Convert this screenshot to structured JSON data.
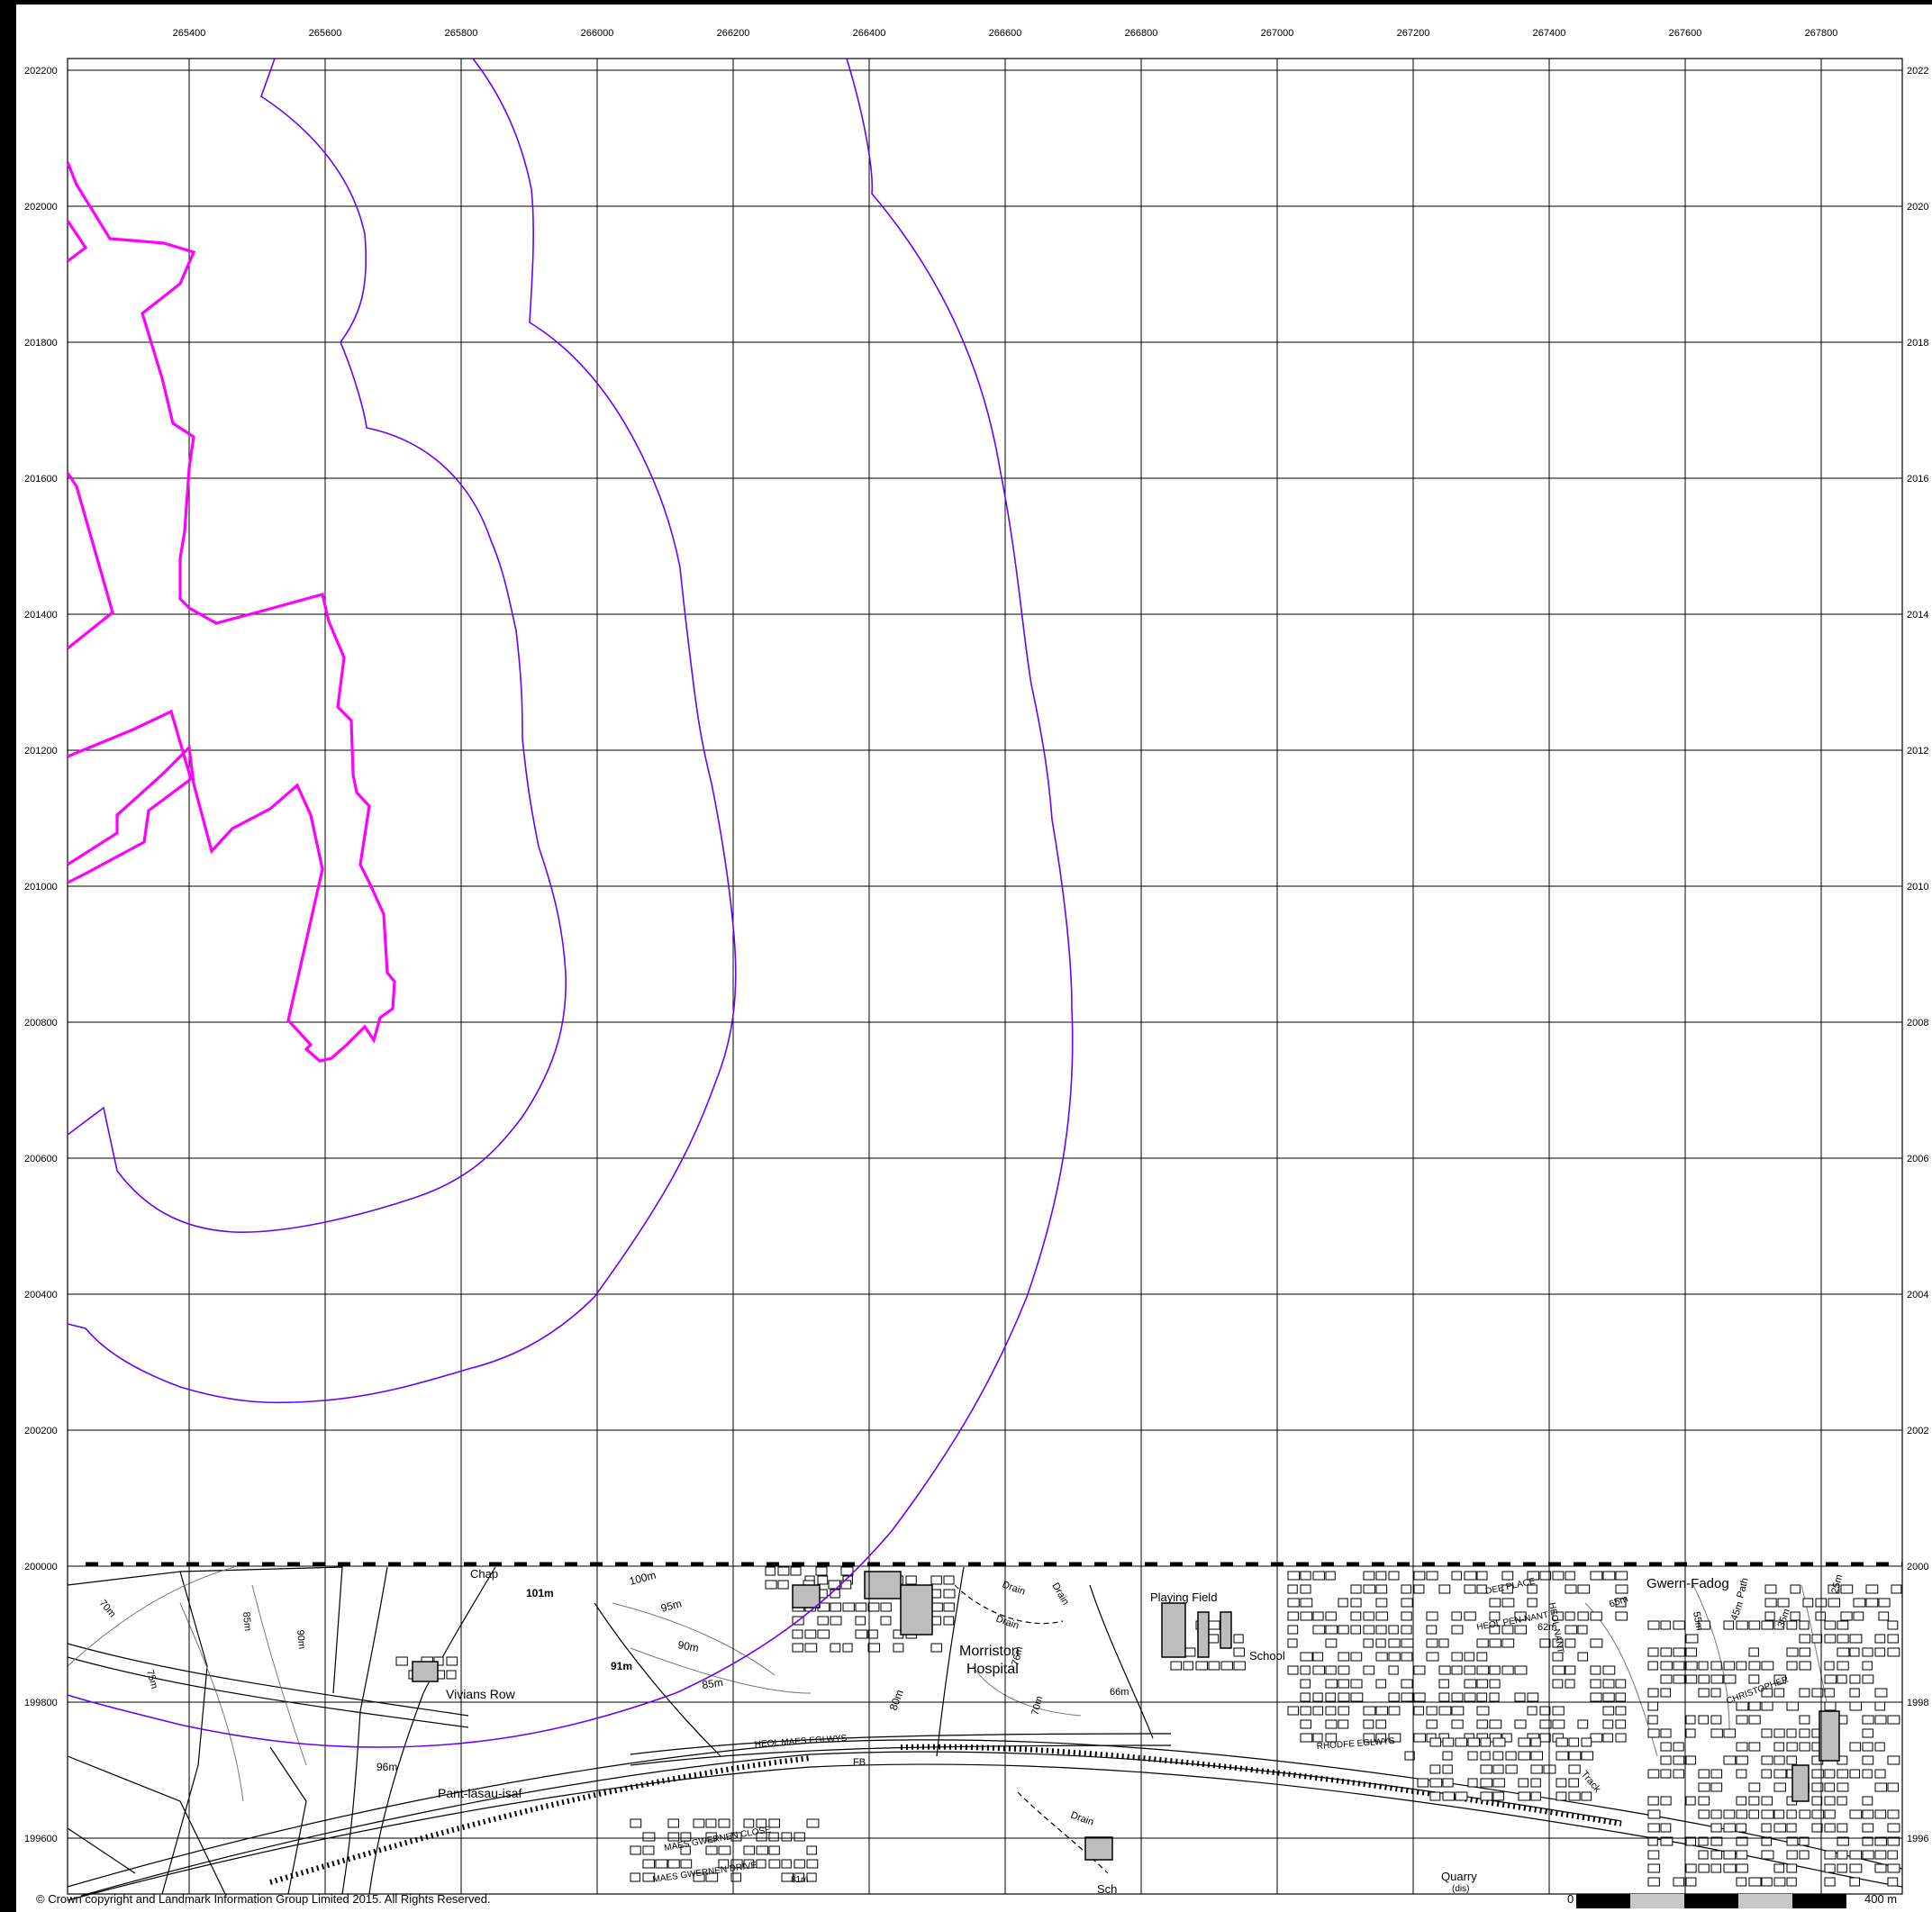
{
  "map": {
    "easting_ticks": [
      "265400",
      "265600",
      "265800",
      "266000",
      "266200",
      "266400",
      "266600",
      "266800",
      "267000",
      "267200",
      "267400",
      "267600",
      "267800"
    ],
    "northing_ticks": [
      "202200",
      "202000",
      "201800",
      "201600",
      "201400",
      "201200",
      "201000",
      "200800",
      "200600",
      "200400",
      "200200",
      "200000",
      "199800",
      "199600"
    ],
    "northing_right_ticks": [
      "2022",
      "2020",
      "2018",
      "2016",
      "2014",
      "2012",
      "2010",
      "2008",
      "2006",
      "2004",
      "2002",
      "2000",
      "1998",
      "1996"
    ],
    "colors": {
      "grid": "#000000",
      "boundary": "#ff00ff",
      "buffer": "#6a00ff",
      "osbase": "#000000",
      "building_fill": "#bdbdbd"
    },
    "labels": {
      "chapel": "Chap",
      "spot_101": "101m",
      "spot_100": "100m",
      "spot_95": "95m",
      "spot_90a": "90m",
      "spot_91": "91m",
      "spot_85a": "85m",
      "spot_80": "80m",
      "vivians_row": "Vivians Row",
      "pant_lasau": "Pant-lasau-isaf",
      "spot_96": "96m",
      "maes_gwernen_close": "MAES GWERNEN CLOSE",
      "maes_gwernen_drive": "MAES GWERNEN DRIVE",
      "heol_maes_eglwys": "HEOL MAES EGLWYS",
      "drain1": "Drain",
      "drain2": "Drain",
      "drain3": "Drain",
      "drain4": "Drain",
      "morriston": "Morriston",
      "hospital": "Hospital",
      "fb": "FB",
      "playing_field": "Playing Field",
      "school": "School",
      "spot_66": "66m",
      "sch": "Sch",
      "quarry": "Quarry",
      "dis": "(dis)",
      "gwern_fadog": "Gwern-Fadog",
      "dee_place": "DEE PLACE",
      "heol_pen_nant": "HEOL PEN-NANT",
      "heol_nant": "HEOL NANT",
      "spot_62": "62m",
      "spot_65": "65m",
      "rhodfe_eg": "RHODFE EGLWYS",
      "spot_55": "55m",
      "spot_45": "45m",
      "spot_35": "35m",
      "path": "Path",
      "track": "Track",
      "christopher": "CHRISTOPHER",
      "spot_75": "75m",
      "spot_70": "70m",
      "spot_90b": "90m",
      "spot_85b": "85m",
      "spot_76": "76m",
      "spot_70b": "70m",
      "spot_25": "25m",
      "spot_81": "81m"
    }
  },
  "footer": {
    "copyright": "© Crown copyright and Landmark Information Group Limited 2015.  All Rights Reserved.",
    "scale_zero": "0",
    "scale_label": "400 m"
  }
}
